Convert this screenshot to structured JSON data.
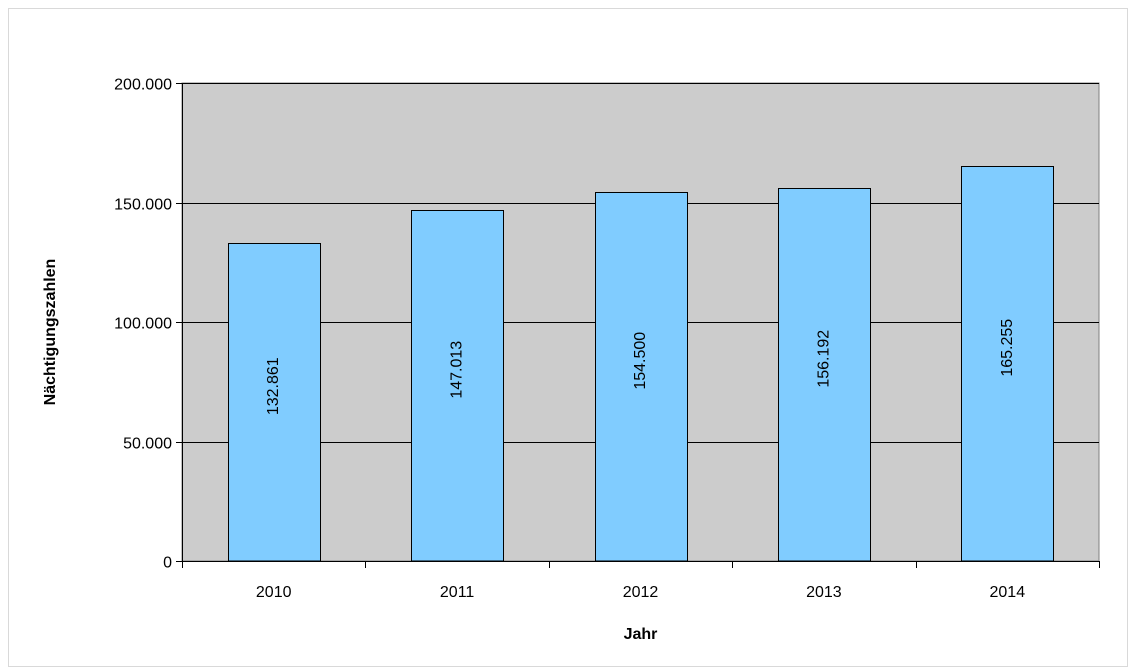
{
  "chart_data": {
    "type": "bar",
    "title": "",
    "xlabel": "Jahr",
    "ylabel": "Nächtigungszahlen",
    "categories": [
      "2010",
      "2011",
      "2012",
      "2013",
      "2014"
    ],
    "values": [
      132861,
      147013,
      154500,
      156192,
      165255
    ],
    "value_labels": [
      "132.861",
      "147.013",
      "154.500",
      "156.192",
      "165.255"
    ],
    "ylim": [
      0,
      200000
    ],
    "yticks": [
      0,
      50000,
      100000,
      150000,
      200000
    ],
    "ytick_labels": [
      "0",
      "50.000",
      "100.000",
      "150.000",
      "200.000"
    ],
    "grid": true,
    "legend": "none",
    "colors": {
      "bar_fill": "#80ccff",
      "plot_background": "#cccccc",
      "gridline": "#000000"
    }
  }
}
